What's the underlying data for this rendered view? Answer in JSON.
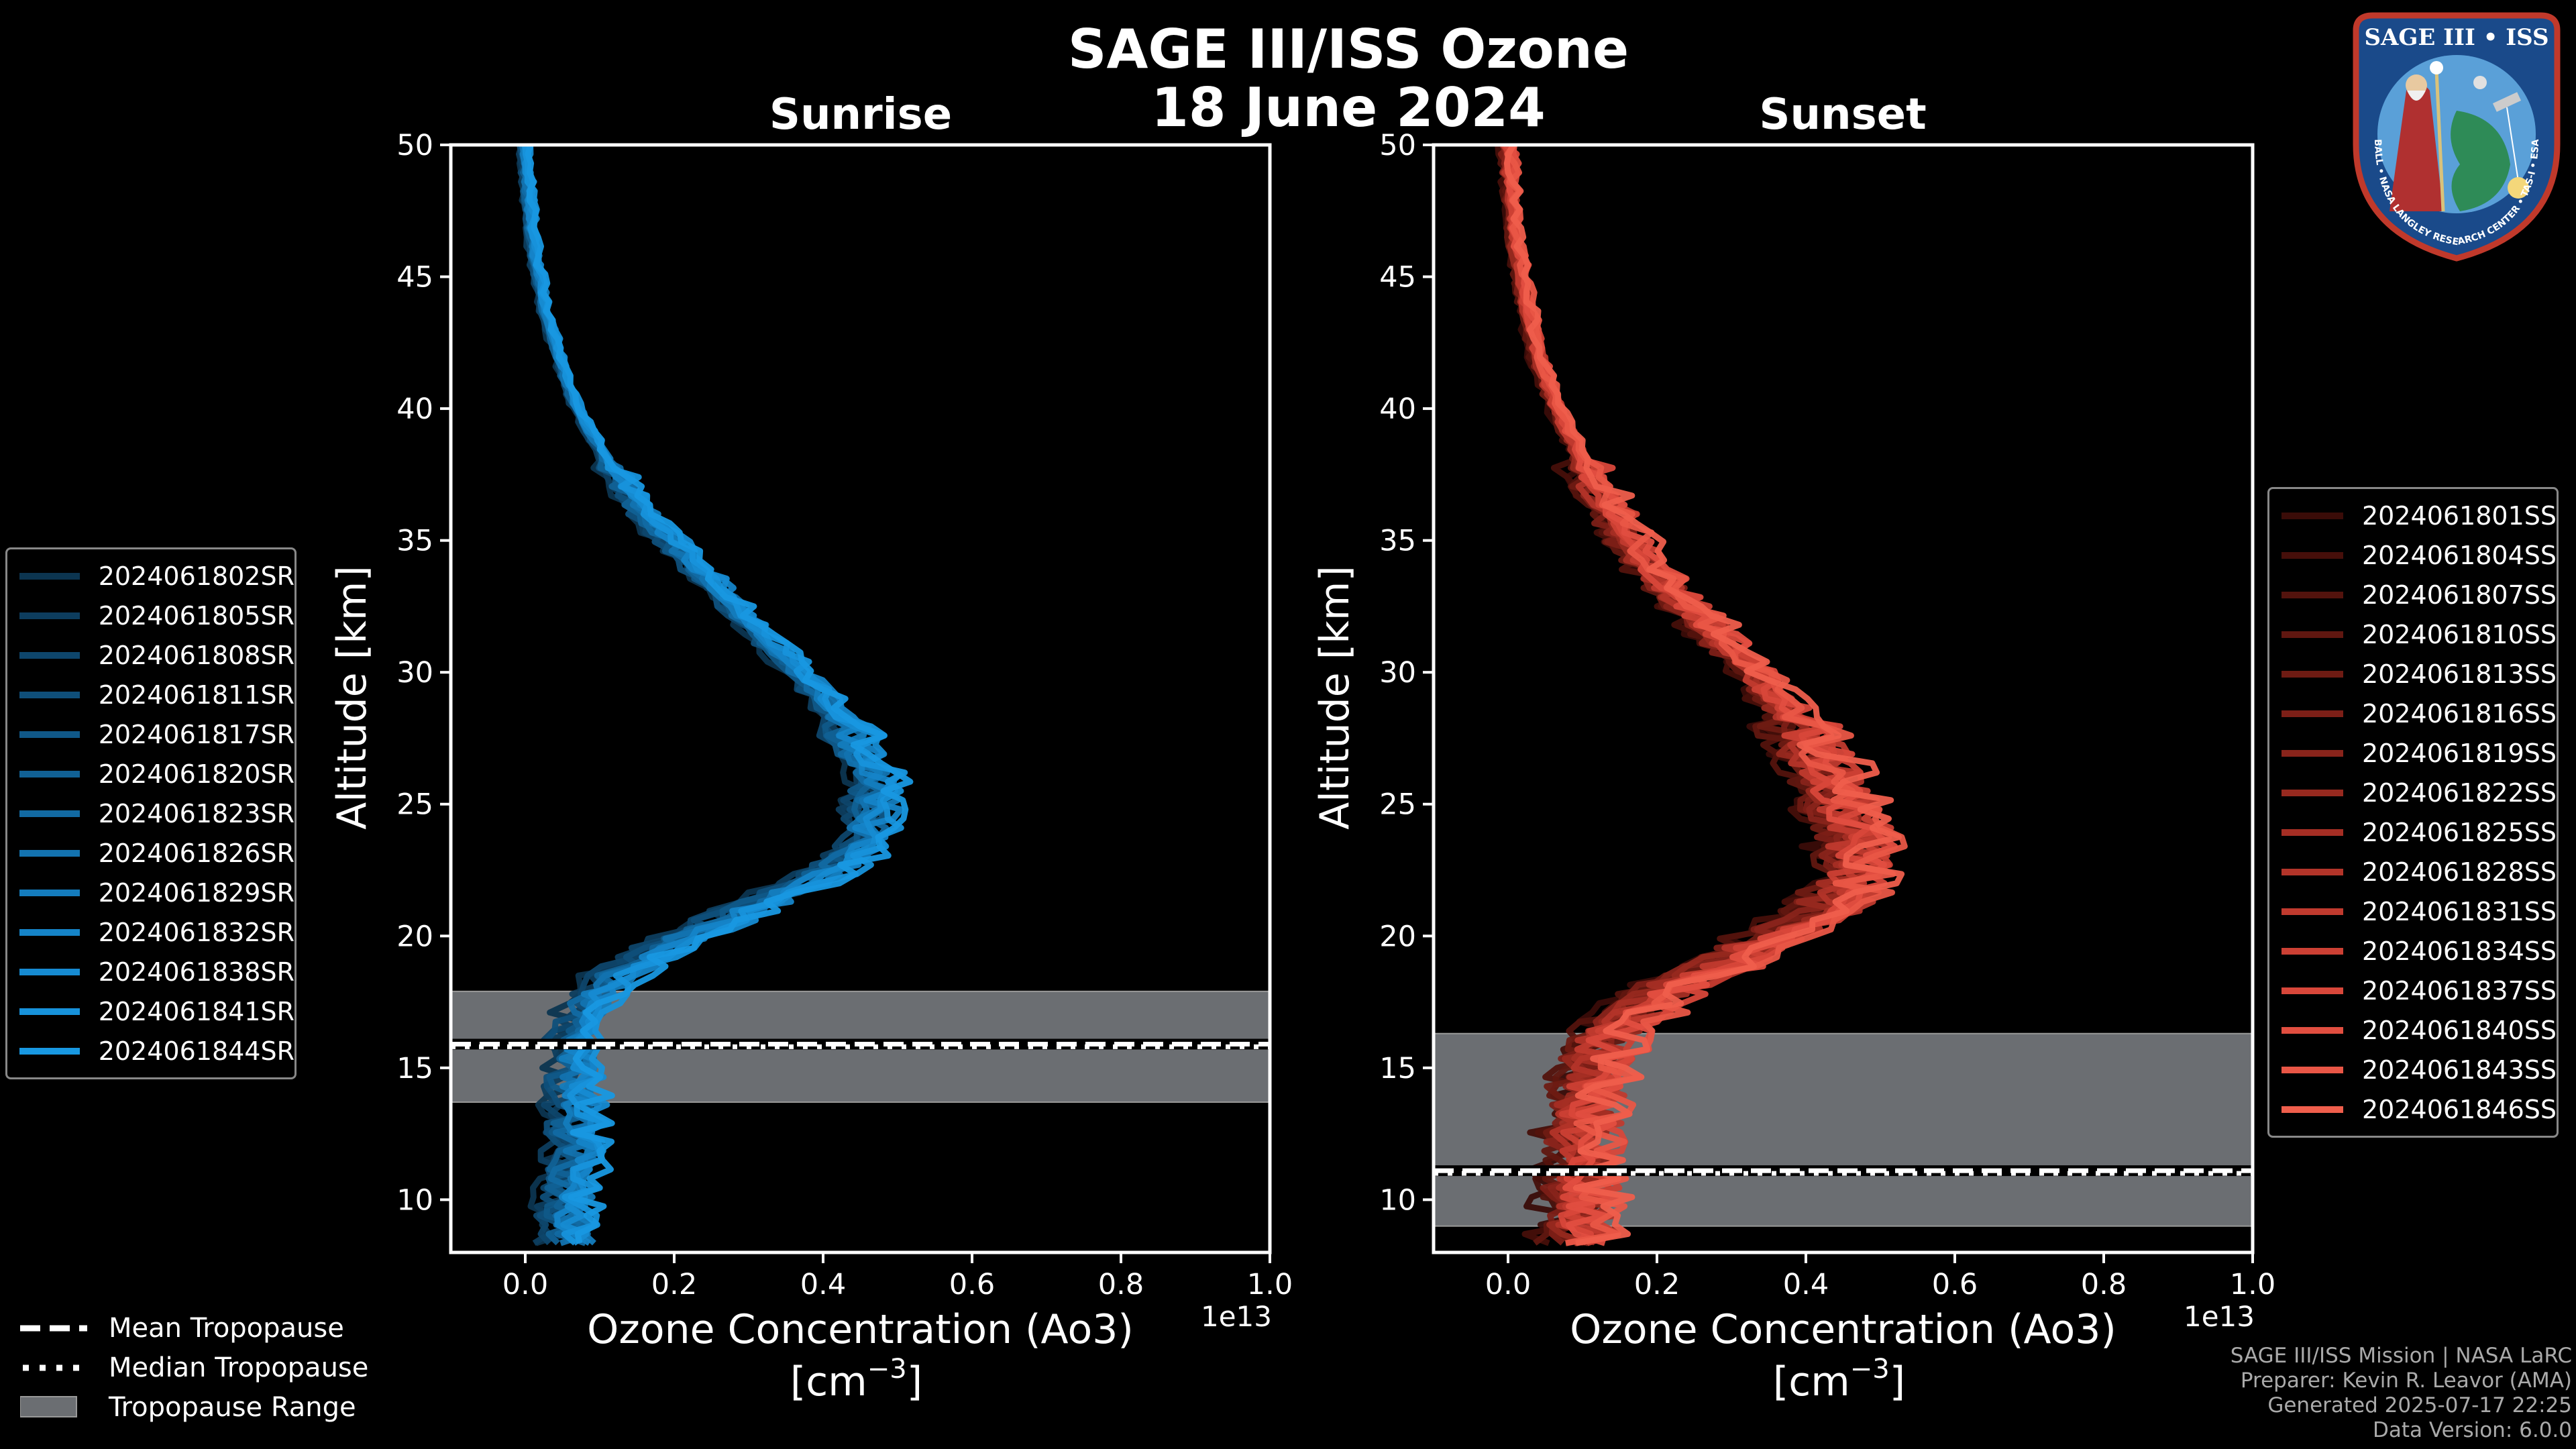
{
  "page": {
    "title_line1": "SAGE III/ISS Ozone",
    "title_line2": "18 June 2024"
  },
  "badge": {
    "top_text": "SAGE III • ISS",
    "ring_text": "BALL • NASA LANGLEY RESEARCH CENTER • TAS-I • ESA",
    "colors": {
      "ring": "#1a4a8a",
      "border": "#c0392b",
      "sky": "#5aa0d8",
      "land": "#2e8b57",
      "robe": "#b03030"
    }
  },
  "legend_bottom": [
    {
      "label": "Mean Tropopause",
      "style": "dashed"
    },
    {
      "label": "Median Tropopause",
      "style": "dotted"
    },
    {
      "label": "Tropopause Range",
      "style": "patch"
    }
  ],
  "credits": [
    "SAGE III/ISS Mission | NASA LaRC",
    "Preparer: Kevin R. Leavor (AMA)",
    "Generated 2025-07-17 22:25",
    "Data Version: 6.0.0"
  ],
  "chart_data": [
    {
      "type": "line",
      "title": "Sunrise",
      "xlabel": "Ozone Concentration (Ao3)",
      "xunit_label": "[cm",
      "xunit_exp": "−3",
      "ylabel": "Altitude [km]",
      "xlim": [
        -0.1,
        1.0
      ],
      "ylim": [
        8,
        50
      ],
      "xticks": [
        0.0,
        0.2,
        0.4,
        0.6,
        0.8,
        1.0
      ],
      "yticks": [
        10,
        15,
        20,
        25,
        30,
        35,
        40,
        45,
        50
      ],
      "x_offset_text": "1e13",
      "grid": false,
      "legend_position": "left",
      "tropopause": {
        "mean": 15.9,
        "median": 15.8,
        "range": [
          13.7,
          17.9
        ]
      },
      "tropopause_color": "#6b6e72",
      "seed": 7,
      "spread": 0.028,
      "profile": [
        [
          50,
          0.0
        ],
        [
          48,
          0.005
        ],
        [
          46,
          0.012
        ],
        [
          44,
          0.025
        ],
        [
          42,
          0.045
        ],
        [
          40,
          0.07
        ],
        [
          38,
          0.11
        ],
        [
          36,
          0.16
        ],
        [
          34,
          0.23
        ],
        [
          32,
          0.3
        ],
        [
          30,
          0.37
        ],
        [
          28,
          0.43
        ],
        [
          26,
          0.47
        ],
        [
          25,
          0.47
        ],
        [
          24,
          0.46
        ],
        [
          23,
          0.44
        ],
        [
          22,
          0.38
        ],
        [
          21,
          0.3
        ],
        [
          20,
          0.22
        ],
        [
          19,
          0.15
        ],
        [
          18,
          0.1
        ],
        [
          17,
          0.08
        ],
        [
          16,
          0.07
        ],
        [
          15,
          0.07
        ],
        [
          14,
          0.07
        ],
        [
          13,
          0.07
        ],
        [
          12,
          0.07
        ],
        [
          11,
          0.065
        ],
        [
          10,
          0.06
        ],
        [
          9,
          0.06
        ],
        [
          8,
          0.06
        ]
      ],
      "series": [
        {
          "name": "2024061802SR",
          "color": "#0c3550"
        },
        {
          "name": "2024061805SR",
          "color": "#0d3d5e"
        },
        {
          "name": "2024061808SR",
          "color": "#0e466c"
        },
        {
          "name": "2024061811SR",
          "color": "#0f4f7a"
        },
        {
          "name": "2024061817SR",
          "color": "#105888"
        },
        {
          "name": "2024061820SR",
          "color": "#116195"
        },
        {
          "name": "2024061823SR",
          "color": "#126aa3"
        },
        {
          "name": "2024061826SR",
          "color": "#1373b0"
        },
        {
          "name": "2024061829SR",
          "color": "#147cbd"
        },
        {
          "name": "2024061832SR",
          "color": "#1584c8"
        },
        {
          "name": "2024061838SR",
          "color": "#168bd2"
        },
        {
          "name": "2024061841SR",
          "color": "#1792db"
        },
        {
          "name": "2024061844SR",
          "color": "#1898e2"
        }
      ]
    },
    {
      "type": "line",
      "title": "Sunset",
      "xlabel": "Ozone Concentration (Ao3)",
      "xunit_label": "[cm",
      "xunit_exp": "−3",
      "ylabel": "Altitude [km]",
      "xlim": [
        -0.1,
        1.0
      ],
      "ylim": [
        8,
        50
      ],
      "xticks": [
        0.0,
        0.2,
        0.4,
        0.6,
        0.8,
        1.0
      ],
      "yticks": [
        10,
        15,
        20,
        25,
        30,
        35,
        40,
        45,
        50
      ],
      "x_offset_text": "1e13",
      "grid": false,
      "legend_position": "right",
      "tropopause": {
        "mean": 11.1,
        "median": 11.0,
        "range": [
          9.0,
          16.3
        ]
      },
      "tropopause_color": "#6b6e72",
      "seed": 19,
      "spread": 0.045,
      "profile": [
        [
          50,
          0.0
        ],
        [
          48,
          0.005
        ],
        [
          46,
          0.013
        ],
        [
          44,
          0.025
        ],
        [
          42,
          0.04
        ],
        [
          40,
          0.065
        ],
        [
          38,
          0.1
        ],
        [
          36,
          0.14
        ],
        [
          34,
          0.19
        ],
        [
          32,
          0.26
        ],
        [
          30,
          0.33
        ],
        [
          28,
          0.39
        ],
        [
          26,
          0.43
        ],
        [
          24,
          0.46
        ],
        [
          23,
          0.47
        ],
        [
          22,
          0.46
        ],
        [
          21,
          0.43
        ],
        [
          20,
          0.36
        ],
        [
          19,
          0.29
        ],
        [
          18,
          0.22
        ],
        [
          17,
          0.17
        ],
        [
          16,
          0.13
        ],
        [
          15,
          0.12
        ],
        [
          14,
          0.11
        ],
        [
          13,
          0.1
        ],
        [
          12,
          0.1
        ],
        [
          11,
          0.1
        ],
        [
          10,
          0.1
        ],
        [
          9,
          0.095
        ],
        [
          8,
          0.09
        ]
      ],
      "series": [
        {
          "name": "2024061801SS",
          "color": "#3a0c08"
        },
        {
          "name": "2024061804SS",
          "color": "#460f0a"
        },
        {
          "name": "2024061807SS",
          "color": "#53130d"
        },
        {
          "name": "2024061810SS",
          "color": "#601710"
        },
        {
          "name": "2024061813SS",
          "color": "#6e1b13"
        },
        {
          "name": "2024061816SS",
          "color": "#7c1f17"
        },
        {
          "name": "2024061819SS",
          "color": "#89241b"
        },
        {
          "name": "2024061822SS",
          "color": "#97291f"
        },
        {
          "name": "2024061825SS",
          "color": "#a52e24"
        },
        {
          "name": "2024061828SS",
          "color": "#b33429"
        },
        {
          "name": "2024061831SS",
          "color": "#c03a2e"
        },
        {
          "name": "2024061834SS",
          "color": "#cc4034"
        },
        {
          "name": "2024061837SS",
          "color": "#d8473a"
        },
        {
          "name": "2024061840SS",
          "color": "#e14e40"
        },
        {
          "name": "2024061843SS",
          "color": "#e95646"
        },
        {
          "name": "2024061846SS",
          "color": "#ef5e4c"
        }
      ]
    }
  ]
}
